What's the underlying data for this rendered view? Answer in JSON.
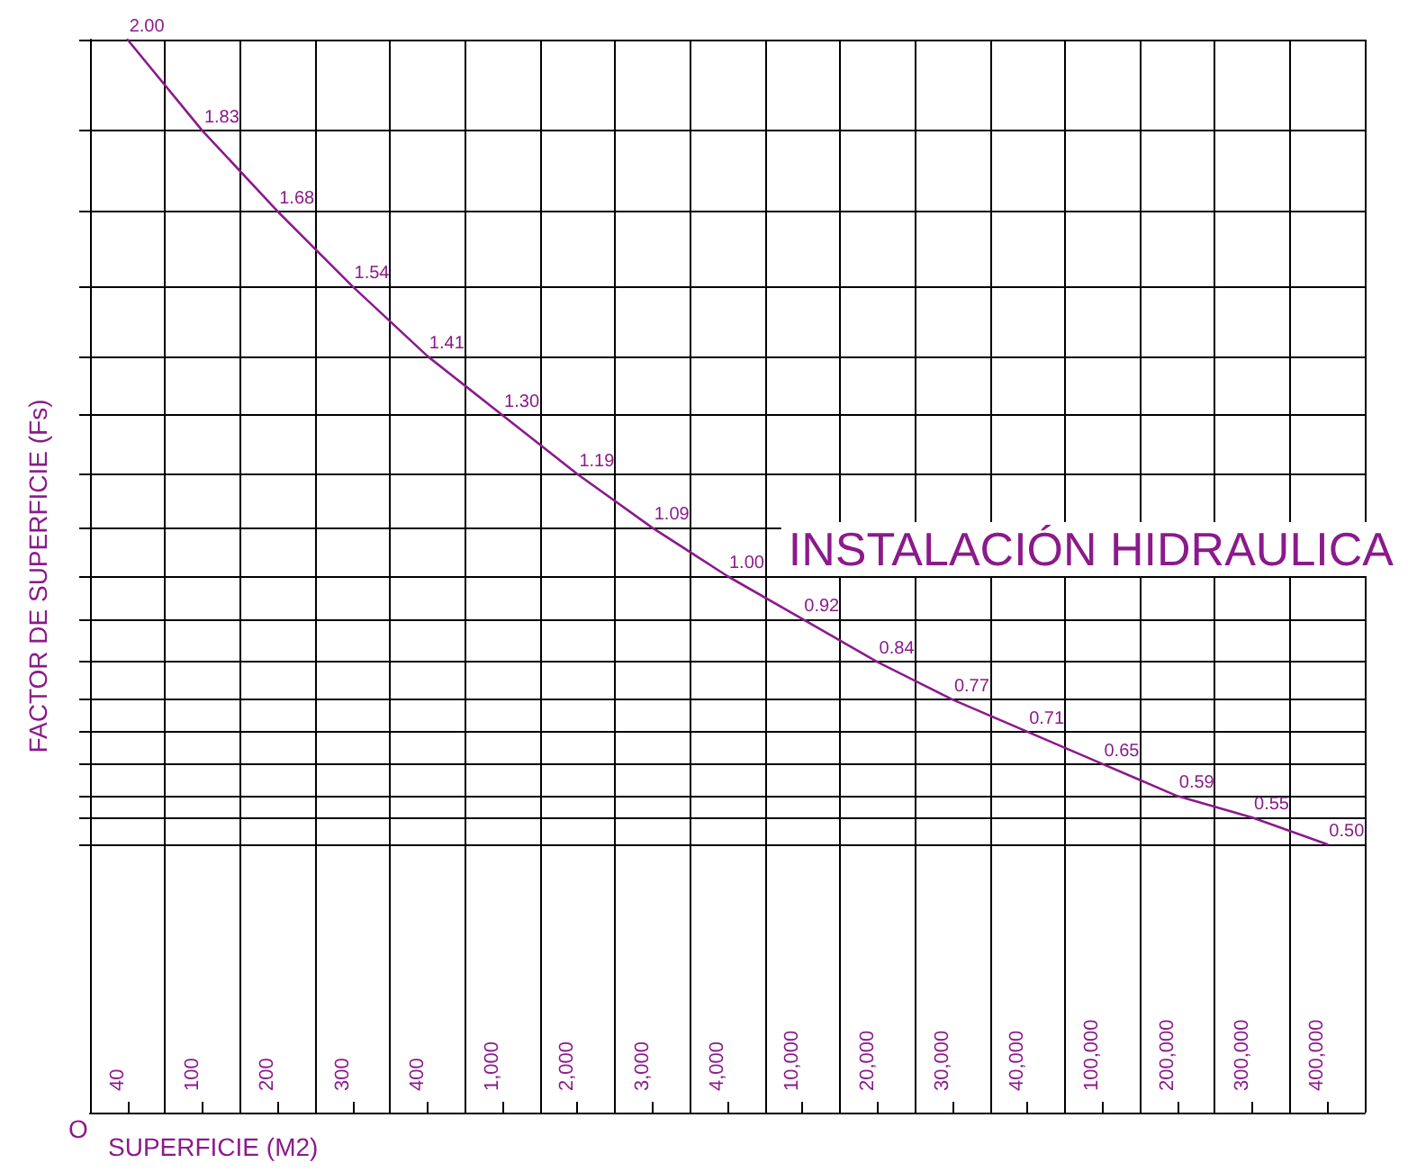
{
  "chart_data": {
    "type": "line",
    "title": "INSTALACIÓN HIDRAULICA",
    "xlabel": "SUPERFICIE (M2)",
    "ylabel": "FACTOR DE SUPERFICIE (Fs)",
    "annotations": [
      "O"
    ],
    "categories": [
      "40",
      "100",
      "200",
      "300",
      "400",
      "1,000",
      "2,000",
      "3,000",
      "4,000",
      "10,000",
      "20,000",
      "30,000",
      "40,000",
      "100,000",
      "200,000",
      "300,000",
      "400,000"
    ],
    "series": [
      {
        "color": "#8b1a8b",
        "values": [
          2.0,
          1.83,
          1.68,
          1.54,
          1.41,
          1.3,
          1.19,
          1.09,
          1.0,
          0.92,
          0.84,
          0.77,
          0.71,
          0.65,
          0.59,
          0.55,
          0.5
        ],
        "value_labels": [
          "2.00",
          "1.83",
          "1.68",
          "1.54",
          "1.41",
          "1.30",
          "1.19",
          "1.09",
          "1.00",
          "0.92",
          "0.84",
          "0.77",
          "0.71",
          "0.65",
          "0.59",
          "0.55",
          "0.50"
        ]
      }
    ],
    "grid": true,
    "tick_labels": "x",
    "marker": "none",
    "line_style": "solid"
  }
}
